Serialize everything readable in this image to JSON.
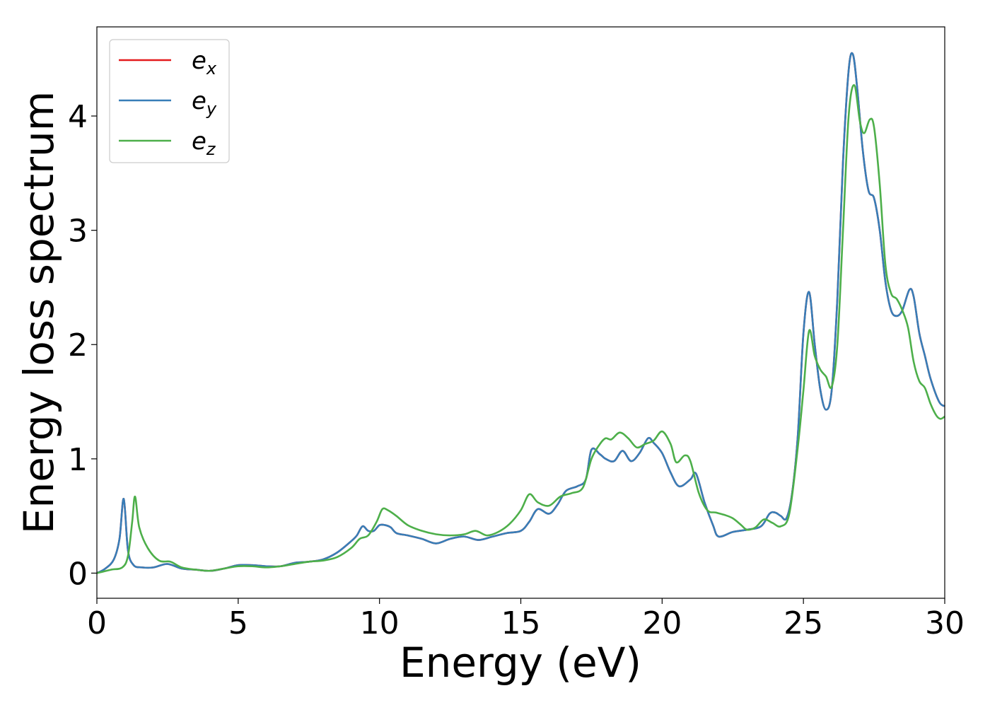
{
  "chart_data": {
    "type": "line",
    "title": "",
    "xlabel": "Energy (eV)",
    "ylabel": "Energy loss spectrum",
    "xlim": [
      0,
      30
    ],
    "ylim": [
      -0.22,
      4.78
    ],
    "xticks": [
      0,
      5,
      10,
      15,
      20,
      25,
      30
    ],
    "xtick_labels": [
      "0",
      "5",
      "10",
      "15",
      "20",
      "25",
      "30"
    ],
    "yticks": [
      0,
      1,
      2,
      3,
      4
    ],
    "ytick_labels": [
      "0",
      "1",
      "2",
      "3",
      "4"
    ],
    "grid": false,
    "legend": {
      "position": "top-left",
      "entries": [
        {
          "base": "e",
          "sub": "x",
          "color": "#e41a1c"
        },
        {
          "base": "e",
          "sub": "y",
          "color": "#377eb8"
        },
        {
          "base": "e",
          "sub": "z",
          "color": "#4daf4a"
        }
      ]
    },
    "series": [
      {
        "name": "e_x",
        "color": "#e41a1c",
        "x": [
          0,
          0.3,
          0.6,
          0.8,
          0.95,
          1.1,
          1.3,
          1.6,
          2.0,
          2.5,
          3.0,
          3.5,
          4.0,
          4.5,
          5.0,
          5.5,
          6.0,
          6.5,
          7.0,
          7.5,
          8.0,
          8.5,
          9.0,
          9.2,
          9.4,
          9.6,
          9.8,
          10.0,
          10.2,
          10.4,
          10.6,
          11.0,
          11.5,
          12.0,
          12.5,
          13.0,
          13.5,
          14.0,
          14.5,
          15.0,
          15.3,
          15.6,
          16.0,
          16.3,
          16.6,
          17.0,
          17.3,
          17.5,
          17.8,
          18.0,
          18.3,
          18.6,
          18.9,
          19.2,
          19.5,
          19.7,
          20.0,
          20.3,
          20.6,
          21.0,
          21.2,
          21.5,
          21.8,
          22.0,
          22.5,
          23.0,
          23.5,
          23.8,
          24.0,
          24.2,
          24.4,
          24.6,
          24.8,
          25.0,
          25.2,
          25.4,
          25.6,
          25.8,
          26.0,
          26.2,
          26.4,
          26.6,
          26.75,
          26.9,
          27.1,
          27.3,
          27.5,
          27.7,
          27.9,
          28.1,
          28.3,
          28.5,
          28.75,
          28.9,
          29.1,
          29.3,
          29.5,
          29.8,
          30.0
        ],
        "y": [
          0.0,
          0.04,
          0.12,
          0.3,
          0.65,
          0.2,
          0.07,
          0.05,
          0.05,
          0.08,
          0.04,
          0.03,
          0.02,
          0.04,
          0.07,
          0.07,
          0.06,
          0.06,
          0.09,
          0.1,
          0.12,
          0.18,
          0.28,
          0.33,
          0.41,
          0.37,
          0.37,
          0.42,
          0.42,
          0.4,
          0.35,
          0.33,
          0.3,
          0.26,
          0.3,
          0.32,
          0.29,
          0.32,
          0.35,
          0.37,
          0.45,
          0.56,
          0.52,
          0.6,
          0.72,
          0.76,
          0.82,
          1.08,
          1.04,
          1.0,
          0.98,
          1.07,
          0.98,
          1.05,
          1.18,
          1.14,
          1.05,
          0.88,
          0.76,
          0.82,
          0.87,
          0.62,
          0.42,
          0.32,
          0.36,
          0.38,
          0.41,
          0.52,
          0.53,
          0.5,
          0.48,
          0.7,
          1.2,
          2.1,
          2.46,
          2.0,
          1.6,
          1.43,
          1.6,
          2.4,
          3.6,
          4.4,
          4.54,
          4.25,
          3.7,
          3.35,
          3.28,
          3.0,
          2.55,
          2.3,
          2.25,
          2.3,
          2.48,
          2.42,
          2.1,
          1.9,
          1.7,
          1.5,
          1.46
        ]
      },
      {
        "name": "e_y",
        "color": "#377eb8",
        "x": [
          0,
          0.3,
          0.6,
          0.8,
          0.95,
          1.1,
          1.3,
          1.6,
          2.0,
          2.5,
          3.0,
          3.5,
          4.0,
          4.5,
          5.0,
          5.5,
          6.0,
          6.5,
          7.0,
          7.5,
          8.0,
          8.5,
          9.0,
          9.2,
          9.4,
          9.6,
          9.8,
          10.0,
          10.2,
          10.4,
          10.6,
          11.0,
          11.5,
          12.0,
          12.5,
          13.0,
          13.5,
          14.0,
          14.5,
          15.0,
          15.3,
          15.6,
          16.0,
          16.3,
          16.6,
          17.0,
          17.3,
          17.5,
          17.8,
          18.0,
          18.3,
          18.6,
          18.9,
          19.2,
          19.5,
          19.7,
          20.0,
          20.3,
          20.6,
          21.0,
          21.2,
          21.5,
          21.8,
          22.0,
          22.5,
          23.0,
          23.5,
          23.8,
          24.0,
          24.2,
          24.4,
          24.6,
          24.8,
          25.0,
          25.2,
          25.4,
          25.6,
          25.8,
          26.0,
          26.2,
          26.4,
          26.6,
          26.75,
          26.9,
          27.1,
          27.3,
          27.5,
          27.7,
          27.9,
          28.1,
          28.3,
          28.5,
          28.75,
          28.9,
          29.1,
          29.3,
          29.5,
          29.8,
          30.0
        ],
        "y": [
          0.0,
          0.04,
          0.12,
          0.3,
          0.65,
          0.2,
          0.07,
          0.05,
          0.05,
          0.08,
          0.04,
          0.03,
          0.02,
          0.04,
          0.07,
          0.07,
          0.06,
          0.06,
          0.09,
          0.1,
          0.12,
          0.18,
          0.28,
          0.33,
          0.41,
          0.37,
          0.37,
          0.42,
          0.42,
          0.4,
          0.35,
          0.33,
          0.3,
          0.26,
          0.3,
          0.32,
          0.29,
          0.32,
          0.35,
          0.37,
          0.45,
          0.56,
          0.52,
          0.6,
          0.72,
          0.76,
          0.82,
          1.08,
          1.04,
          1.0,
          0.98,
          1.07,
          0.98,
          1.05,
          1.18,
          1.14,
          1.05,
          0.88,
          0.76,
          0.82,
          0.87,
          0.62,
          0.42,
          0.32,
          0.36,
          0.38,
          0.41,
          0.52,
          0.53,
          0.5,
          0.48,
          0.7,
          1.2,
          2.1,
          2.46,
          2.0,
          1.6,
          1.43,
          1.6,
          2.4,
          3.6,
          4.4,
          4.54,
          4.25,
          3.7,
          3.35,
          3.28,
          3.0,
          2.55,
          2.3,
          2.25,
          2.3,
          2.48,
          2.42,
          2.1,
          1.9,
          1.7,
          1.5,
          1.46
        ]
      },
      {
        "name": "e_z",
        "color": "#4daf4a",
        "x": [
          0,
          0.5,
          0.9,
          1.1,
          1.25,
          1.35,
          1.5,
          1.8,
          2.2,
          2.6,
          3.0,
          3.5,
          4.0,
          4.5,
          5.0,
          5.5,
          6.0,
          6.5,
          7.0,
          7.5,
          8.0,
          8.5,
          9.0,
          9.3,
          9.6,
          9.9,
          10.1,
          10.3,
          10.6,
          11.0,
          11.5,
          12.0,
          12.5,
          13.0,
          13.4,
          13.8,
          14.2,
          14.6,
          15.0,
          15.3,
          15.6,
          16.0,
          16.4,
          16.8,
          17.2,
          17.5,
          17.8,
          18.0,
          18.2,
          18.5,
          18.8,
          19.1,
          19.4,
          19.7,
          20.0,
          20.3,
          20.5,
          20.8,
          21.0,
          21.3,
          21.6,
          21.9,
          22.2,
          22.5,
          22.8,
          23.0,
          23.3,
          23.6,
          23.9,
          24.2,
          24.5,
          24.8,
          25.0,
          25.2,
          25.4,
          25.6,
          25.8,
          26.0,
          26.2,
          26.4,
          26.6,
          26.8,
          27.0,
          27.15,
          27.35,
          27.5,
          27.7,
          27.9,
          28.1,
          28.3,
          28.5,
          28.7,
          28.9,
          29.1,
          29.3,
          29.5,
          29.7,
          29.85,
          30.0
        ],
        "y": [
          0.0,
          0.03,
          0.05,
          0.15,
          0.45,
          0.67,
          0.4,
          0.22,
          0.11,
          0.1,
          0.05,
          0.03,
          0.02,
          0.04,
          0.06,
          0.06,
          0.05,
          0.06,
          0.08,
          0.1,
          0.11,
          0.14,
          0.22,
          0.3,
          0.33,
          0.45,
          0.56,
          0.55,
          0.5,
          0.42,
          0.37,
          0.34,
          0.33,
          0.34,
          0.37,
          0.33,
          0.36,
          0.43,
          0.55,
          0.69,
          0.62,
          0.59,
          0.67,
          0.7,
          0.75,
          1.0,
          1.13,
          1.18,
          1.17,
          1.23,
          1.18,
          1.1,
          1.13,
          1.16,
          1.24,
          1.13,
          0.97,
          1.03,
          0.98,
          0.7,
          0.55,
          0.53,
          0.51,
          0.48,
          0.42,
          0.38,
          0.4,
          0.47,
          0.44,
          0.41,
          0.52,
          1.1,
          1.6,
          2.12,
          1.9,
          1.78,
          1.72,
          1.63,
          2.0,
          3.0,
          4.0,
          4.27,
          3.95,
          3.85,
          3.97,
          3.9,
          3.4,
          2.7,
          2.45,
          2.4,
          2.3,
          2.15,
          1.85,
          1.68,
          1.62,
          1.48,
          1.38,
          1.35,
          1.37
        ]
      }
    ]
  }
}
